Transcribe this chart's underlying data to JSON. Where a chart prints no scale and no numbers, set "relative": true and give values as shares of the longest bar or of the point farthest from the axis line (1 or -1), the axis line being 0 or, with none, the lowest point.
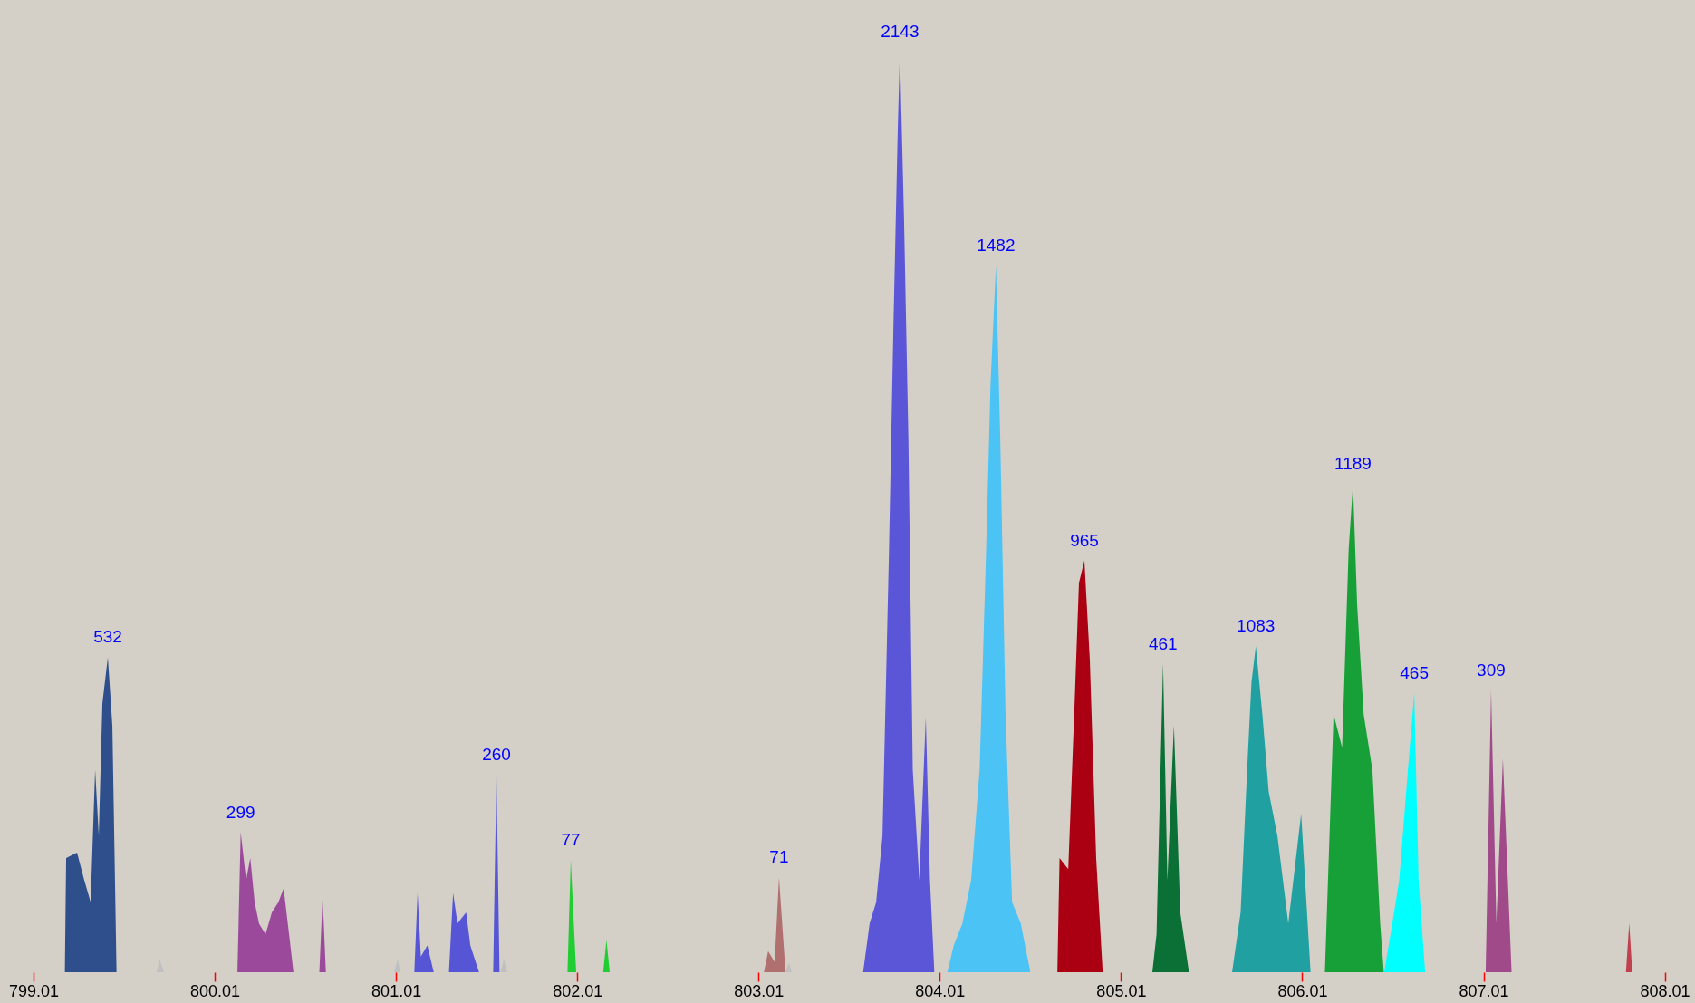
{
  "chart_data": {
    "type": "area",
    "relative": true,
    "xlim": [
      798.825,
      808.177
    ],
    "xticks": [
      799.01,
      800.01,
      801.01,
      802.01,
      803.01,
      804.01,
      805.01,
      806.01,
      807.01,
      808.01
    ],
    "series": [
      {
        "color": "#2f4f8c",
        "x": [
          799.183,
          799.19,
          799.25,
          799.29,
          799.325,
          799.35,
          799.37,
          799.39,
          799.42,
          799.445,
          799.468
        ],
        "values": [
          0,
          0.124,
          0.13,
          0.1,
          0.076,
          0.22,
          0.148,
          0.292,
          0.342,
          0.268,
          0
        ]
      },
      {
        "color": "#c0c0c0",
        "x": [
          799.689,
          799.706,
          799.73,
          799.8,
          801.0,
          801.018,
          801.036,
          801.3,
          801.587,
          801.605,
          801.623,
          802.5,
          803.159,
          803.177,
          803.194
        ],
        "values": [
          0,
          0.014,
          0,
          null,
          0,
          0.014,
          0,
          null,
          0,
          0.014,
          0,
          null,
          0,
          0.01,
          0
        ]
      },
      {
        "color": "#9b4a9b",
        "x": [
          800.135,
          800.153,
          800.183,
          800.206,
          800.23,
          800.254,
          800.29,
          800.325,
          800.361,
          800.39,
          800.42,
          800.444,
          800.5,
          800.587,
          800.605,
          800.623
        ],
        "values": [
          0,
          0.152,
          0.1,
          0.124,
          0.076,
          0.053,
          0.041,
          0.065,
          0.076,
          0.091,
          0.041,
          0,
          null,
          0,
          0.082,
          0
        ]
      },
      {
        "color": "#5555d5",
        "x": [
          801.111,
          801.129,
          801.147,
          801.183,
          801.218,
          801.25,
          801.302,
          801.325,
          801.349,
          801.397,
          801.42,
          801.468,
          801.5,
          801.546,
          801.564,
          801.581
        ],
        "values": [
          0,
          0.086,
          0.017,
          0.029,
          0,
          null,
          0,
          0.086,
          0.053,
          0.065,
          0.029,
          0,
          null,
          0,
          0.215,
          0
        ]
      },
      {
        "color": "#22cc33",
        "x": [
          801.956,
          801.974,
          802.004,
          802.1,
          802.153,
          802.171,
          802.189
        ],
        "values": [
          0,
          0.122,
          0,
          null,
          0,
          0.035,
          0
        ]
      },
      {
        "color": "#b07070",
        "x": [
          803.04,
          803.063,
          803.099,
          803.123,
          803.159
        ],
        "values": [
          0,
          0.023,
          0.011,
          0.103,
          0
        ]
      },
      {
        "color": "#5b55d8",
        "x": [
          803.587,
          803.623,
          803.659,
          803.694,
          803.73,
          803.754,
          803.778,
          803.79,
          803.813,
          803.837,
          803.861,
          803.897,
          803.933,
          803.956,
          803.98
        ],
        "values": [
          0,
          0.053,
          0.076,
          0.148,
          0.459,
          0.698,
          0.913,
          1.0,
          0.817,
          0.578,
          0.22,
          0.1,
          0.277,
          0.1,
          0
        ]
      },
      {
        "color": "#4bc3f5",
        "x": [
          804.052,
          804.087,
          804.135,
          804.183,
          804.23,
          804.266,
          804.29,
          804.32,
          804.344,
          804.373,
          804.409,
          804.457,
          804.51
        ],
        "values": [
          0,
          0.029,
          0.053,
          0.1,
          0.22,
          0.459,
          0.638,
          0.768,
          0.578,
          0.28,
          0.076,
          0.053,
          0
        ]
      },
      {
        "color": "#aa0011",
        "x": [
          804.659,
          804.671,
          804.719,
          804.754,
          804.778,
          804.808,
          804.838,
          804.873,
          804.909
        ],
        "values": [
          0,
          0.124,
          0.112,
          0.292,
          0.423,
          0.447,
          0.339,
          0.124,
          0
        ]
      },
      {
        "color": "#0a7035",
        "x": [
          805.183,
          805.206,
          805.242,
          805.266,
          805.302,
          805.337,
          805.385
        ],
        "values": [
          0,
          0.041,
          0.335,
          0.1,
          0.268,
          0.065,
          0
        ]
      },
      {
        "color": "#20a0a0",
        "x": [
          805.623,
          805.67,
          805.706,
          805.73,
          805.754,
          805.79,
          805.825,
          805.873,
          805.933,
          806.004,
          806.056
        ],
        "values": [
          0,
          0.065,
          0.22,
          0.315,
          0.354,
          0.28,
          0.196,
          0.148,
          0.053,
          0.172,
          0
        ]
      },
      {
        "color": "#18a038",
        "x": [
          806.135,
          806.183,
          806.23,
          806.266,
          806.29,
          806.313,
          806.349,
          806.397,
          806.44,
          806.46
        ],
        "values": [
          0,
          0.28,
          0.244,
          0.459,
          0.53,
          0.399,
          0.28,
          0.22,
          0.053,
          0
        ]
      },
      {
        "color": "#00ffff",
        "x": [
          806.462,
          806.497,
          806.545,
          806.593,
          806.628,
          806.652,
          806.688
        ],
        "values": [
          0,
          0.041,
          0.1,
          0.22,
          0.303,
          0.1,
          0
        ]
      },
      {
        "color": "#a04a8a",
        "x": [
          807.022,
          807.052,
          807.081,
          807.117,
          807.165
        ],
        "values": [
          0,
          0.306,
          0.053,
          0.232,
          0
        ]
      },
      {
        "color": "#c04050",
        "x": [
          807.796,
          807.814,
          807.831
        ],
        "values": [
          0,
          0.053,
          0
        ]
      }
    ],
    "annotations": [
      {
        "text": "532",
        "x": 799.42,
        "y": 0.342
      },
      {
        "text": "299",
        "x": 800.153,
        "y": 0.152
      },
      {
        "text": "260",
        "x": 801.564,
        "y": 0.215
      },
      {
        "text": "77",
        "x": 801.974,
        "y": 0.122
      },
      {
        "text": "71",
        "x": 803.123,
        "y": 0.103
      },
      {
        "text": "2143",
        "x": 803.79,
        "y": 1.0
      },
      {
        "text": "1482",
        "x": 804.32,
        "y": 0.768
      },
      {
        "text": "965",
        "x": 804.808,
        "y": 0.447
      },
      {
        "text": "461",
        "x": 805.242,
        "y": 0.335
      },
      {
        "text": "1083",
        "x": 805.754,
        "y": 0.354
      },
      {
        "text": "1189",
        "x": 806.29,
        "y": 0.53
      },
      {
        "text": "465",
        "x": 806.628,
        "y": 0.303
      },
      {
        "text": "309",
        "x": 807.052,
        "y": 0.306
      }
    ]
  }
}
